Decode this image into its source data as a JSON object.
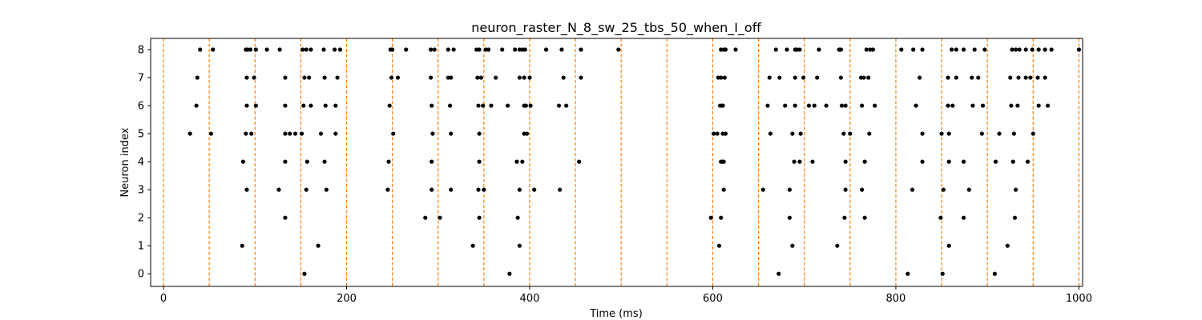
{
  "chart_data": {
    "type": "scatter",
    "title": "neuron_raster_N_8_sw_25_tbs_50_when_I_off",
    "xlabel": "Time (ms)",
    "ylabel": "Neuron index",
    "xlim": [
      -14,
      1004
    ],
    "ylim": [
      -0.45,
      8.4
    ],
    "xticks": [
      0,
      200,
      400,
      600,
      800,
      1000
    ],
    "yticks": [
      0,
      1,
      2,
      3,
      4,
      5,
      6,
      7,
      8
    ],
    "grid": false,
    "marker_color": "#000000",
    "vline_color": "#ff7f0e",
    "vlines": [
      0,
      50,
      100,
      150,
      200,
      250,
      300,
      350,
      400,
      450,
      500,
      550,
      600,
      650,
      700,
      750,
      800,
      850,
      900,
      950,
      1000
    ],
    "spikes": [
      {
        "neuron": 8,
        "times": [
          40,
          54,
          90,
          92,
          95,
          101,
          113,
          127,
          152,
          156,
          161,
          175,
          187,
          193,
          248,
          250,
          265,
          292,
          296,
          311,
          317,
          342,
          345,
          352,
          355,
          370,
          384,
          389,
          392,
          395,
          418,
          435,
          456,
          497,
          609,
          612,
          614,
          625,
          669,
          681,
          690,
          692,
          695,
          716,
          738,
          740,
          768,
          772,
          775,
          806,
          819,
          829,
          861,
          866,
          874,
          886,
          897,
          927,
          931,
          935,
          942,
          949,
          956,
          963,
          970,
          1000
        ]
      },
      {
        "neuron": 7,
        "times": [
          37,
          91,
          99,
          133,
          154,
          159,
          176,
          190,
          249,
          256,
          292,
          311,
          314,
          343,
          347,
          363,
          389,
          394,
          400,
          437,
          456,
          606,
          609,
          613,
          662,
          673,
          690,
          699,
          714,
          740,
          762,
          765,
          770,
          826,
          857,
          866,
          883,
          890,
          925,
          934,
          942,
          947,
          955,
          963
        ]
      },
      {
        "neuron": 6,
        "times": [
          36,
          91,
          101,
          133,
          153,
          161,
          177,
          188,
          247,
          293,
          313,
          344,
          349,
          358,
          376,
          394,
          396,
          401,
          432,
          440,
          608,
          610,
          611,
          660,
          679,
          690,
          705,
          711,
          724,
          741,
          745,
          763,
          777,
          822,
          857,
          862,
          884,
          895,
          926,
          933,
          956,
          966
        ]
      },
      {
        "neuron": 5,
        "times": [
          29,
          52,
          90,
          96,
          133,
          138,
          144,
          151,
          172,
          188,
          251,
          294,
          314,
          345,
          394,
          397,
          601,
          605,
          611,
          614,
          663,
          687,
          696,
          743,
          750,
          771,
          829,
          850,
          858,
          894,
          913,
          929,
          950
        ]
      },
      {
        "neuron": 4,
        "times": [
          87,
          133,
          157,
          176,
          246,
          293,
          345,
          386,
          392,
          454,
          609,
          611,
          612,
          689,
          695,
          709,
          745,
          766,
          829,
          858,
          874,
          909,
          928,
          944
        ]
      },
      {
        "neuron": 3,
        "times": [
          91,
          126,
          156,
          178,
          245,
          293,
          314,
          344,
          350,
          389,
          405,
          433,
          612,
          655,
          684,
          745,
          763,
          818,
          852,
          880,
          931
        ]
      },
      {
        "neuron": 2,
        "times": [
          133,
          286,
          302,
          345,
          387,
          598,
          609,
          684,
          744,
          766,
          849,
          874,
          930
        ]
      },
      {
        "neuron": 1,
        "times": [
          86,
          169,
          338,
          389,
          607,
          687,
          736,
          858,
          922
        ]
      },
      {
        "neuron": 0,
        "times": [
          154,
          378,
          672,
          813,
          851,
          908
        ]
      }
    ]
  }
}
